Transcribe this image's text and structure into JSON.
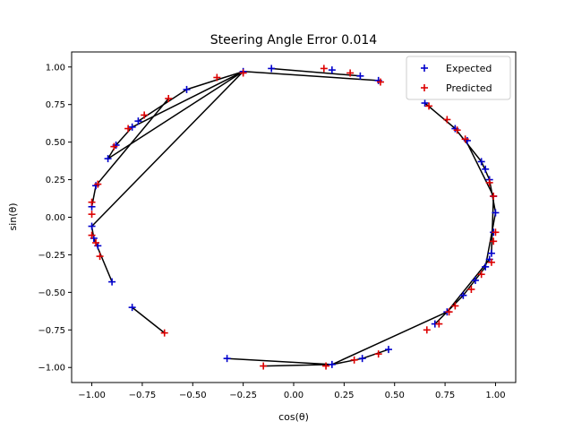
{
  "chart_data": {
    "type": "scatter",
    "title": "Steering Angle Error 0.014",
    "xlabel": "cos(θ)",
    "ylabel": "sin(θ)",
    "xlim": [
      -1.1,
      1.1
    ],
    "ylim": [
      -1.1,
      1.1
    ],
    "xticks": [
      -1.0,
      -0.75,
      -0.5,
      -0.25,
      0.0,
      0.25,
      0.5,
      0.75,
      1.0
    ],
    "yticks": [
      -1.0,
      -0.75,
      -0.5,
      -0.25,
      0.0,
      0.25,
      0.5,
      0.75,
      1.0
    ],
    "xtick_labels": [
      "−1.00",
      "−0.75",
      "−0.50",
      "−0.25",
      "0.00",
      "0.25",
      "0.50",
      "0.75",
      "1.00"
    ],
    "ytick_labels": [
      "−1.00",
      "−0.75",
      "−0.50",
      "−0.25",
      "0.00",
      "0.25",
      "0.50",
      "0.75",
      "1.00"
    ],
    "legend_position": "top-right",
    "series": [
      {
        "name": "Expected",
        "color": "#0000cc",
        "marker": "+",
        "points": [
          [
            -0.11,
            0.99
          ],
          [
            0.19,
            0.98
          ],
          [
            0.33,
            0.94
          ],
          [
            0.42,
            0.91
          ],
          [
            -0.53,
            0.85
          ],
          [
            -0.25,
            0.97
          ],
          [
            -0.77,
            0.64
          ],
          [
            -0.8,
            0.6
          ],
          [
            -0.88,
            0.48
          ],
          [
            -0.92,
            0.39
          ],
          [
            -0.98,
            0.21
          ],
          [
            -1.0,
            0.07
          ],
          [
            -1.0,
            -0.06
          ],
          [
            -0.99,
            -0.14
          ],
          [
            -0.97,
            -0.19
          ],
          [
            -0.9,
            -0.43
          ],
          [
            -0.8,
            -0.6
          ],
          [
            0.65,
            0.76
          ],
          [
            0.8,
            0.59
          ],
          [
            0.86,
            0.51
          ],
          [
            0.93,
            0.37
          ],
          [
            0.95,
            0.32
          ],
          [
            0.97,
            0.25
          ],
          [
            0.99,
            0.14
          ],
          [
            1.0,
            0.03
          ],
          [
            0.99,
            -0.1
          ],
          [
            0.98,
            -0.24
          ],
          [
            0.97,
            -0.28
          ],
          [
            0.95,
            -0.33
          ],
          [
            0.9,
            -0.42
          ],
          [
            0.84,
            -0.52
          ],
          [
            0.76,
            -0.63
          ],
          [
            0.7,
            -0.71
          ],
          [
            -0.33,
            -0.94
          ],
          [
            0.19,
            -0.98
          ],
          [
            0.34,
            -0.94
          ],
          [
            0.47,
            -0.88
          ]
        ]
      },
      {
        "name": "Predicted",
        "color": "#dd0000",
        "marker": "+",
        "points": [
          [
            0.15,
            0.99
          ],
          [
            0.28,
            0.96
          ],
          [
            0.43,
            0.9
          ],
          [
            -0.38,
            0.93
          ],
          [
            -0.25,
            0.96
          ],
          [
            -0.62,
            0.79
          ],
          [
            -0.74,
            0.68
          ],
          [
            -0.82,
            0.59
          ],
          [
            -0.89,
            0.47
          ],
          [
            -0.97,
            0.22
          ],
          [
            -1.0,
            0.1
          ],
          [
            -1.0,
            0.02
          ],
          [
            -1.0,
            -0.12
          ],
          [
            -0.98,
            -0.17
          ],
          [
            -0.96,
            -0.26
          ],
          [
            -0.64,
            -0.77
          ],
          [
            0.67,
            0.74
          ],
          [
            0.76,
            0.65
          ],
          [
            0.81,
            0.58
          ],
          [
            0.85,
            0.52
          ],
          [
            0.97,
            0.23
          ],
          [
            0.99,
            0.14
          ],
          [
            1.0,
            -0.1
          ],
          [
            0.99,
            -0.16
          ],
          [
            0.98,
            -0.3
          ],
          [
            0.93,
            -0.38
          ],
          [
            0.88,
            -0.48
          ],
          [
            0.8,
            -0.59
          ],
          [
            0.77,
            -0.63
          ],
          [
            0.72,
            -0.71
          ],
          [
            0.66,
            -0.75
          ],
          [
            -0.15,
            -0.99
          ],
          [
            0.16,
            -0.99
          ],
          [
            0.3,
            -0.95
          ],
          [
            0.42,
            -0.91
          ]
        ]
      }
    ],
    "connections": [
      [
        [
          -0.11,
          0.99
        ],
        [
          0.33,
          0.94
        ]
      ],
      [
        [
          0.42,
          0.91
        ],
        [
          -0.25,
          0.97
        ]
      ],
      [
        [
          -0.25,
          0.97
        ],
        [
          -0.53,
          0.85
        ]
      ],
      [
        [
          -0.53,
          0.85
        ],
        [
          -0.77,
          0.64
        ]
      ],
      [
        [
          -0.25,
          0.97
        ],
        [
          -0.8,
          0.6
        ]
      ],
      [
        [
          -0.8,
          0.6
        ],
        [
          -0.88,
          0.48
        ]
      ],
      [
        [
          -0.88,
          0.48
        ],
        [
          -0.92,
          0.39
        ]
      ],
      [
        [
          -0.25,
          0.97
        ],
        [
          -0.92,
          0.39
        ]
      ],
      [
        [
          -0.62,
          0.79
        ],
        [
          -0.98,
          0.21
        ]
      ],
      [
        [
          -0.98,
          0.21
        ],
        [
          -1.0,
          0.07
        ]
      ],
      [
        [
          -0.25,
          0.97
        ],
        [
          -1.0,
          -0.06
        ]
      ],
      [
        [
          -1.0,
          -0.06
        ],
        [
          -0.99,
          -0.14
        ]
      ],
      [
        [
          -0.99,
          -0.14
        ],
        [
          -0.9,
          -0.43
        ]
      ],
      [
        [
          -0.8,
          -0.6
        ],
        [
          -0.64,
          -0.77
        ]
      ],
      [
        [
          0.65,
          0.76
        ],
        [
          0.8,
          0.59
        ]
      ],
      [
        [
          0.8,
          0.59
        ],
        [
          0.93,
          0.37
        ]
      ],
      [
        [
          0.93,
          0.37
        ],
        [
          0.97,
          0.25
        ]
      ],
      [
        [
          0.97,
          0.25
        ],
        [
          1.0,
          0.03
        ]
      ],
      [
        [
          0.85,
          0.52
        ],
        [
          0.99,
          0.14
        ]
      ],
      [
        [
          0.99,
          0.14
        ],
        [
          0.98,
          -0.24
        ]
      ],
      [
        [
          1.0,
          0.03
        ],
        [
          0.95,
          -0.33
        ]
      ],
      [
        [
          0.95,
          -0.33
        ],
        [
          0.84,
          -0.52
        ]
      ],
      [
        [
          0.84,
          -0.52
        ],
        [
          0.76,
          -0.63
        ]
      ],
      [
        [
          0.97,
          -0.28
        ],
        [
          0.76,
          -0.63
        ]
      ],
      [
        [
          0.76,
          -0.63
        ],
        [
          0.7,
          -0.71
        ]
      ],
      [
        [
          0.76,
          -0.63
        ],
        [
          0.19,
          -0.98
        ]
      ],
      [
        [
          -0.33,
          -0.94
        ],
        [
          0.19,
          -0.98
        ]
      ],
      [
        [
          0.19,
          -0.98
        ],
        [
          0.34,
          -0.94
        ]
      ],
      [
        [
          0.34,
          -0.94
        ],
        [
          0.47,
          -0.88
        ]
      ],
      [
        [
          0.19,
          -0.98
        ],
        [
          -0.15,
          -0.99
        ]
      ]
    ]
  }
}
